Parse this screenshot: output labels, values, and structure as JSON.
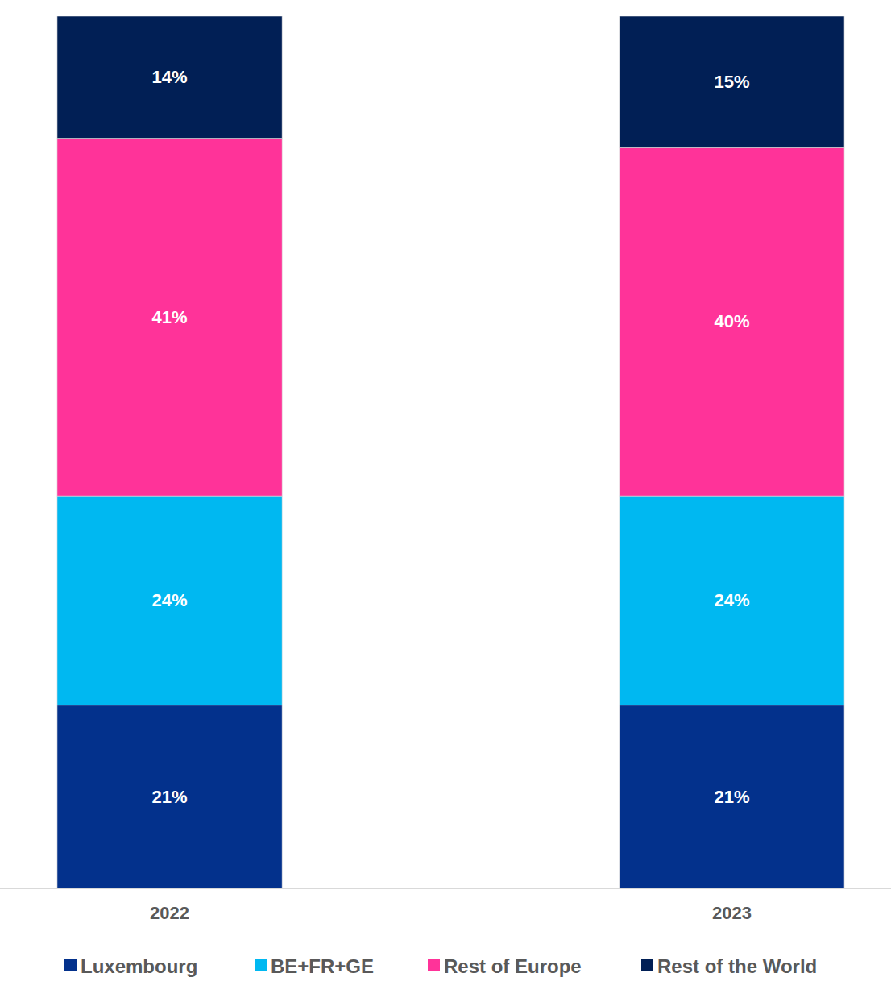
{
  "chart_data": {
    "type": "bar",
    "stacked": true,
    "data_labels": true,
    "tick_labels": "x",
    "legend": "bottom",
    "categories": [
      "2022",
      "2023"
    ],
    "ylim": [
      0,
      100
    ],
    "series": [
      {
        "name": "Luxembourg",
        "color": "#03318c",
        "values": [
          21,
          21
        ],
        "value_labels": [
          "21%",
          "21%"
        ]
      },
      {
        "name": "BE+FR+GE",
        "color": "#00b8f1",
        "values": [
          24,
          24
        ],
        "value_labels": [
          "24%",
          "24%"
        ]
      },
      {
        "name": "Rest of Europe",
        "color": "#ff3399",
        "values": [
          41,
          40
        ],
        "value_labels": [
          "41%",
          "40%"
        ]
      },
      {
        "name": "Rest of the World",
        "color": "#011f55",
        "values": [
          14,
          15
        ],
        "value_labels": [
          "14%",
          "15%"
        ]
      }
    ]
  }
}
